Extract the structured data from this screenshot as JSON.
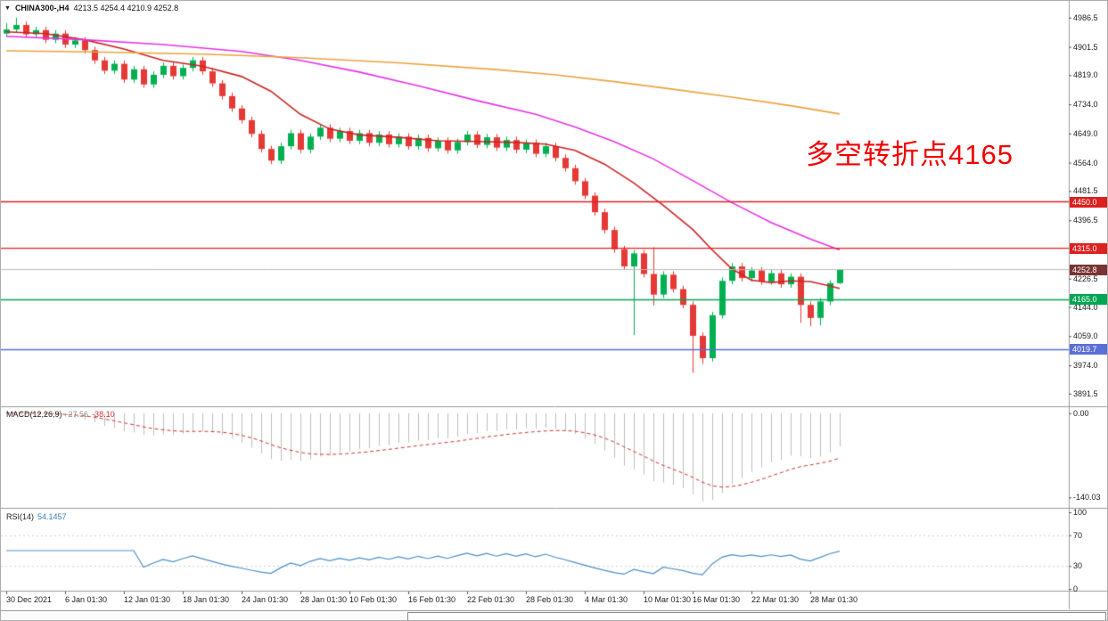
{
  "header": {
    "symbol": "CHINA300-,H4",
    "ohlc": "4213.5 4254.4 4210.9 4252.8"
  },
  "annotation": {
    "text": "多空转折点4165",
    "color": "#f30000"
  },
  "chart_data": {
    "type": "candlestick",
    "title": "CHINA300-,H4",
    "timeframe": "H4",
    "current_bar": {
      "open": 4213.5,
      "high": 4254.4,
      "low": 4210.9,
      "close": 4252.8
    },
    "y_range": [
      3860,
      5030
    ],
    "y_ticks": [
      4986.5,
      4901.5,
      4819.0,
      4734.0,
      4649.0,
      4564.0,
      4481.5,
      4396.5,
      4226.5,
      4144.0,
      4059.0,
      3974.0,
      3891.5
    ],
    "x_labels": [
      {
        "index": 0,
        "label": "30 Dec 2021"
      },
      {
        "index": 6,
        "label": "6 Jan 01:30"
      },
      {
        "index": 12,
        "label": "12 Jan 01:30"
      },
      {
        "index": 18,
        "label": "18 Jan 01:30"
      },
      {
        "index": 24,
        "label": "24 Jan 01:30"
      },
      {
        "index": 30,
        "label": "28 Jan 01:30"
      },
      {
        "index": 35,
        "label": "10 Feb 01:30"
      },
      {
        "index": 41,
        "label": "16 Feb 01:30"
      },
      {
        "index": 47,
        "label": "22 Feb 01:30"
      },
      {
        "index": 53,
        "label": "28 Feb 01:30"
      },
      {
        "index": 59,
        "label": "4 Mar 01:30"
      },
      {
        "index": 65,
        "label": "10 Mar 01:30"
      },
      {
        "index": 70,
        "label": "16 Mar 01:30"
      },
      {
        "index": 76,
        "label": "22 Mar 01:30"
      },
      {
        "index": 82,
        "label": "28 Mar 01:30"
      }
    ],
    "candles": {
      "open": [
        4940,
        4952,
        4965,
        4938,
        4950,
        4922,
        4940,
        4908,
        4920,
        4892,
        4862,
        4832,
        4852,
        4806,
        4836,
        4792,
        4820,
        4846,
        4816,
        4840,
        4862,
        4830,
        4795,
        4758,
        4722,
        4688,
        4648,
        4604,
        4570,
        4612,
        4650,
        4602,
        4640,
        4666,
        4634,
        4656,
        4628,
        4650,
        4622,
        4646,
        4618,
        4640,
        4612,
        4636,
        4606,
        4628,
        4600,
        4624,
        4646,
        4616,
        4638,
        4608,
        4630,
        4602,
        4622,
        4590,
        4612,
        4578,
        4548,
        4510,
        4468,
        4420,
        4368,
        4312,
        4262,
        4300,
        4240,
        4180,
        4238,
        4196,
        4150,
        4060,
        3995,
        4120,
        4220,
        4262,
        4228,
        4250,
        4218,
        4242,
        4210,
        4232,
        4150,
        4112,
        4160,
        4213.5
      ],
      "high": [
        4970,
        4986,
        4975,
        4960,
        4960,
        4950,
        4950,
        4930,
        4930,
        4902,
        4872,
        4862,
        4862,
        4846,
        4846,
        4830,
        4856,
        4856,
        4850,
        4872,
        4872,
        4840,
        4805,
        4768,
        4732,
        4698,
        4658,
        4614,
        4622,
        4660,
        4660,
        4650,
        4676,
        4676,
        4666,
        4666,
        4660,
        4660,
        4656,
        4656,
        4650,
        4650,
        4646,
        4646,
        4638,
        4638,
        4634,
        4656,
        4656,
        4648,
        4648,
        4640,
        4640,
        4632,
        4632,
        4622,
        4622,
        4588,
        4558,
        4520,
        4478,
        4430,
        4378,
        4322,
        4310,
        4310,
        4318,
        4248,
        4248,
        4206,
        4160,
        4070,
        4130,
        4230,
        4272,
        4272,
        4260,
        4260,
        4252,
        4252,
        4242,
        4242,
        4160,
        4170,
        4222,
        4254.4
      ],
      "low": [
        4930,
        4942,
        4928,
        4928,
        4912,
        4912,
        4898,
        4898,
        4882,
        4852,
        4822,
        4822,
        4796,
        4796,
        4782,
        4782,
        4810,
        4806,
        4806,
        4830,
        4820,
        4785,
        4748,
        4712,
        4678,
        4638,
        4594,
        4560,
        4560,
        4602,
        4592,
        4592,
        4630,
        4624,
        4624,
        4618,
        4618,
        4612,
        4612,
        4608,
        4608,
        4602,
        4602,
        4596,
        4596,
        4590,
        4590,
        4614,
        4606,
        4606,
        4598,
        4598,
        4592,
        4592,
        4580,
        4580,
        4568,
        4538,
        4500,
        4458,
        4410,
        4358,
        4302,
        4252,
        4062,
        4230,
        4148,
        4170,
        4186,
        4140,
        3952,
        3978,
        3985,
        4110,
        4210,
        4218,
        4218,
        4208,
        4208,
        4200,
        4200,
        4098,
        4088,
        4090,
        4150,
        4210.9
      ],
      "close": [
        4952,
        4965,
        4938,
        4950,
        4922,
        4940,
        4908,
        4920,
        4892,
        4862,
        4832,
        4852,
        4806,
        4836,
        4792,
        4820,
        4846,
        4816,
        4840,
        4862,
        4830,
        4795,
        4758,
        4722,
        4688,
        4648,
        4604,
        4570,
        4612,
        4650,
        4602,
        4640,
        4666,
        4634,
        4656,
        4628,
        4650,
        4622,
        4646,
        4618,
        4640,
        4612,
        4636,
        4606,
        4628,
        4600,
        4624,
        4646,
        4616,
        4638,
        4608,
        4630,
        4602,
        4622,
        4590,
        4612,
        4578,
        4548,
        4510,
        4468,
        4420,
        4368,
        4312,
        4262,
        4300,
        4240,
        4180,
        4238,
        4196,
        4150,
        4060,
        3995,
        4120,
        4220,
        4262,
        4228,
        4250,
        4218,
        4242,
        4210,
        4232,
        4150,
        4112,
        4160,
        4213.5,
        4252.8
      ]
    },
    "moving_averages": [
      {
        "name": "ma-fast-red",
        "color": "#cc2222",
        "points": [
          [
            0,
            4945
          ],
          [
            4,
            4940
          ],
          [
            8,
            4922
          ],
          [
            12,
            4895
          ],
          [
            16,
            4862
          ],
          [
            20,
            4845
          ],
          [
            24,
            4815
          ],
          [
            27,
            4772
          ],
          [
            30,
            4705
          ],
          [
            33,
            4662
          ],
          [
            36,
            4645
          ],
          [
            40,
            4638
          ],
          [
            44,
            4628
          ],
          [
            48,
            4626
          ],
          [
            52,
            4623
          ],
          [
            55,
            4618
          ],
          [
            58,
            4600
          ],
          [
            61,
            4560
          ],
          [
            64,
            4505
          ],
          [
            67,
            4440
          ],
          [
            70,
            4370
          ],
          [
            72,
            4310
          ],
          [
            74,
            4255
          ],
          [
            76,
            4222
          ],
          [
            78,
            4215
          ],
          [
            80,
            4220
          ],
          [
            82,
            4218
          ],
          [
            84,
            4205
          ],
          [
            85,
            4198
          ]
        ]
      },
      {
        "name": "ma-mid-magenta",
        "color": "#e632e6",
        "points": [
          [
            0,
            4932
          ],
          [
            8,
            4922
          ],
          [
            16,
            4908
          ],
          [
            24,
            4888
          ],
          [
            30,
            4862
          ],
          [
            36,
            4828
          ],
          [
            42,
            4788
          ],
          [
            48,
            4745
          ],
          [
            54,
            4705
          ],
          [
            58,
            4668
          ],
          [
            62,
            4625
          ],
          [
            66,
            4575
          ],
          [
            70,
            4512
          ],
          [
            74,
            4448
          ],
          [
            78,
            4390
          ],
          [
            82,
            4342
          ],
          [
            85,
            4310
          ]
        ]
      },
      {
        "name": "ma-slow-orange",
        "color": "#e8a33d",
        "points": [
          [
            0,
            4890
          ],
          [
            10,
            4886
          ],
          [
            20,
            4880
          ],
          [
            30,
            4870
          ],
          [
            40,
            4855
          ],
          [
            50,
            4835
          ],
          [
            56,
            4820
          ],
          [
            62,
            4800
          ],
          [
            68,
            4778
          ],
          [
            74,
            4755
          ],
          [
            80,
            4730
          ],
          [
            85,
            4706
          ]
        ]
      }
    ],
    "hlines": [
      {
        "value": 4450.0,
        "label": "4450.0",
        "color": "#dd2020"
      },
      {
        "value": 4315.0,
        "label": "4315.0",
        "color": "#dd2020"
      },
      {
        "value": 4165.0,
        "label": "4165.0",
        "color": "#00a651"
      },
      {
        "value": 4019.7,
        "label": "4019.7",
        "color": "#5a6fd8"
      }
    ],
    "price_line": {
      "value": 4252.8,
      "label": "4252.8",
      "line_color": "#b8b8b8",
      "badge_color": "#7a3434"
    },
    "indicators": {
      "macd": {
        "label": "MACD(12,26,9)",
        "main_value": "-27.56",
        "signal_value": "-38.10",
        "axis_labels": [
          {
            "value": 0,
            "text": "0.00"
          },
          {
            "value": -140.03,
            "text": "-140.03"
          }
        ]
      },
      "rsi": {
        "label": "RSI(14)",
        "value": "54.1457",
        "levels": [
          70,
          30
        ],
        "axis_labels": [
          {
            "value": 100,
            "text": "100"
          },
          {
            "value": 70,
            "text": "70"
          },
          {
            "value": 30,
            "text": "30"
          },
          {
            "value": 0,
            "text": "0"
          }
        ]
      }
    },
    "colors": {
      "up": "#00b050",
      "down": "#e53935",
      "histogram": "#bdbdbd",
      "signal": "#cc3333",
      "rsi": "#4a8fc7",
      "axis_line": "#9a9a9a"
    }
  }
}
